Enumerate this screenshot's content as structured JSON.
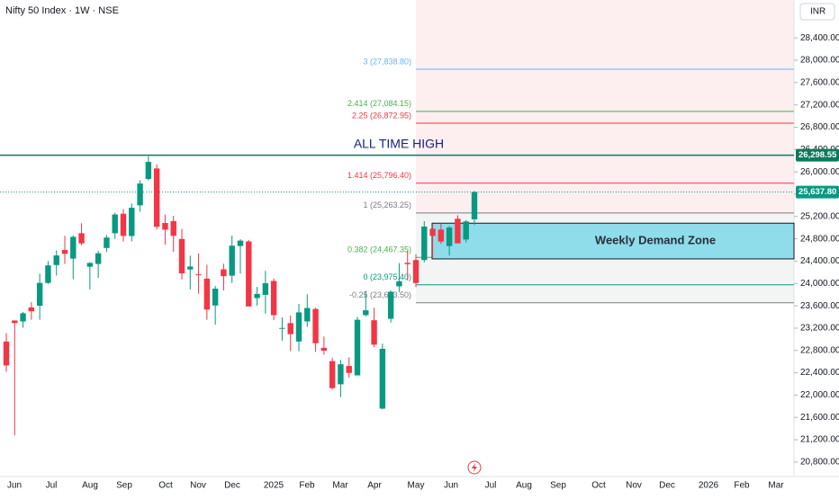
{
  "chart_data": {
    "type": "candlestick",
    "title": "Nifty 50 Index · 1W · NSE",
    "currency": "INR",
    "x_labels": [
      "Jun",
      "Jul",
      "Aug",
      "Sep",
      "Oct",
      "Nov",
      "Dec",
      "2025",
      "Feb",
      "Mar",
      "Apr",
      "May",
      "Jun",
      "Jul",
      "Aug",
      "Sep",
      "Oct",
      "Nov",
      "Dec",
      "2026",
      "Feb",
      "Mar"
    ],
    "up_color": "#089981",
    "down_color": "#f23645",
    "candles": {
      "open": [
        22960,
        23337,
        23320,
        23570,
        23600,
        24010,
        24330,
        24600,
        24445,
        24900,
        24300,
        24350,
        24636,
        24900,
        25250,
        24850,
        25400,
        25872,
        26061,
        25084,
        25118,
        24798,
        24251,
        24164,
        24087,
        23605,
        24253,
        24140,
        24671,
        24753,
        23738,
        23796,
        24045,
        23195,
        23290,
        22960,
        23320,
        23543,
        22847,
        22609,
        22194,
        22521,
        22353,
        23433,
        23341,
        21758,
        23368,
        23949,
        24370,
        24420,
        24420,
        24980,
        24965,
        24670,
        25160,
        24788,
        25150
      ],
      "high": [
        23110,
        23338,
        23490,
        23667,
        24174,
        24401,
        24592,
        24854,
        24861,
        25078,
        24382,
        24584,
        24868,
        25268,
        25333,
        25433,
        25849,
        26277,
        26134,
        25234,
        25212,
        24978,
        24498,
        24537,
        24336,
        23956,
        24354,
        24857,
        24792,
        24781,
        23938,
        24226,
        24089,
        23391,
        23426,
        23632,
        23807,
        23568,
        23049,
        22668,
        22633,
        22677,
        23402,
        23869,
        23565,
        22923,
        23873,
        24365,
        24589,
        24526,
        25116,
        25070,
        25079,
        25030,
        25222,
        25136,
        25655
      ],
      "low": [
        22417,
        21281,
        23207,
        23350,
        23350,
        23992,
        24141,
        24350,
        24074,
        24686,
        23894,
        24100,
        24563,
        24800,
        24753,
        24753,
        25285,
        25847,
        24966,
        24694,
        24567,
        24073,
        23894,
        23816,
        23350,
        23263,
        23873,
        24008,
        24180,
        23647,
        23601,
        23460,
        23344,
        22977,
        22786,
        22787,
        23222,
        22774,
        22725,
        22104,
        21965,
        22315,
        22353,
        23412,
        22858,
        21743,
        23299,
        23848,
        24054,
        23935,
        24378,
        24462,
        24710,
        24500,
        24825,
        24737,
        25050
      ],
      "close": [
        22531,
        23290,
        23466,
        23501,
        24010,
        24324,
        24502,
        24531,
        24835,
        24718,
        24368,
        24541,
        24823,
        25236,
        24852,
        25356,
        25791,
        26178,
        25015,
        24964,
        24854,
        24181,
        24304,
        24148,
        23532,
        23907,
        24131,
        24677,
        24768,
        23588,
        23813,
        24004,
        23432,
        23203,
        23092,
        23482,
        23560,
        22929,
        22796,
        22125,
        22553,
        22397,
        23350,
        23519,
        22904,
        22829,
        23851,
        24039,
        24346,
        24008,
        25020,
        24853,
        24751,
        25003,
        24719,
        25112,
        25637.8
      ]
    },
    "ylim": [
      20541,
      29079
    ],
    "yticks": [
      {
        "value": 20800,
        "label": "20,800.00"
      },
      {
        "value": 21200,
        "label": "21,200.00"
      },
      {
        "value": 21600,
        "label": "21,600.00"
      },
      {
        "value": 22000,
        "label": "22,000.00"
      },
      {
        "value": 22400,
        "label": "22,400.00"
      },
      {
        "value": 22800,
        "label": "22,800.00"
      },
      {
        "value": 23200,
        "label": "23,200.00"
      },
      {
        "value": 23600,
        "label": "23,600.00"
      },
      {
        "value": 24000,
        "label": "24,000.00"
      },
      {
        "value": 24400,
        "label": "24,400.00"
      },
      {
        "value": 24800,
        "label": "24,800.00"
      },
      {
        "value": 25200,
        "label": "25,200.00"
      },
      {
        "value": 25600,
        "label": "25,600.00"
      },
      {
        "value": 26000,
        "label": "26,000.00"
      },
      {
        "value": 26400,
        "label": "26,400.00"
      },
      {
        "value": 26800,
        "label": "26,800.00"
      },
      {
        "value": 27200,
        "label": "27,200.00"
      },
      {
        "value": 27600,
        "label": "27,600.00"
      },
      {
        "value": 28000,
        "label": "28,000.00"
      },
      {
        "value": 28400,
        "label": "28,400.00"
      }
    ],
    "grid": false,
    "levels": [
      {
        "label": "3 (27,838.80)",
        "value": 27838.8,
        "color": "#64b5f6"
      },
      {
        "label": "2.414 (27,084.15)",
        "value": 27084.15,
        "color": "#4caf50"
      },
      {
        "label": "2.25 (26,872.95)",
        "value": 26872.95,
        "color": "#f23645"
      },
      {
        "label": "1.414 (25,796.40)",
        "value": 25796.4,
        "color": "#f23645"
      },
      {
        "label": "1 (25,263.25)",
        "value": 25263.25,
        "color": "#787b86"
      },
      {
        "label": "0.382 (24,467.35)",
        "value": 24467.35,
        "color": "#4caf50"
      },
      {
        "label": "0 (23,975.40)",
        "value": 23975.4,
        "color": "#089981"
      },
      {
        "label": "-0.25 (23,653.50)",
        "value": 23653.5,
        "color": "#787b86"
      }
    ],
    "all_time_high": {
      "label": "ALL TIME HIGH",
      "value": 26298.55,
      "value_label": "26,298.55",
      "color": "#0b7a5c"
    },
    "last_price": {
      "value": 25637.8,
      "label": "25,637.80",
      "color": "#089981"
    },
    "zone": {
      "label": "Weekly Demand Zone",
      "top": 25080,
      "bottom": 24440,
      "color": "#8fdcea"
    }
  }
}
